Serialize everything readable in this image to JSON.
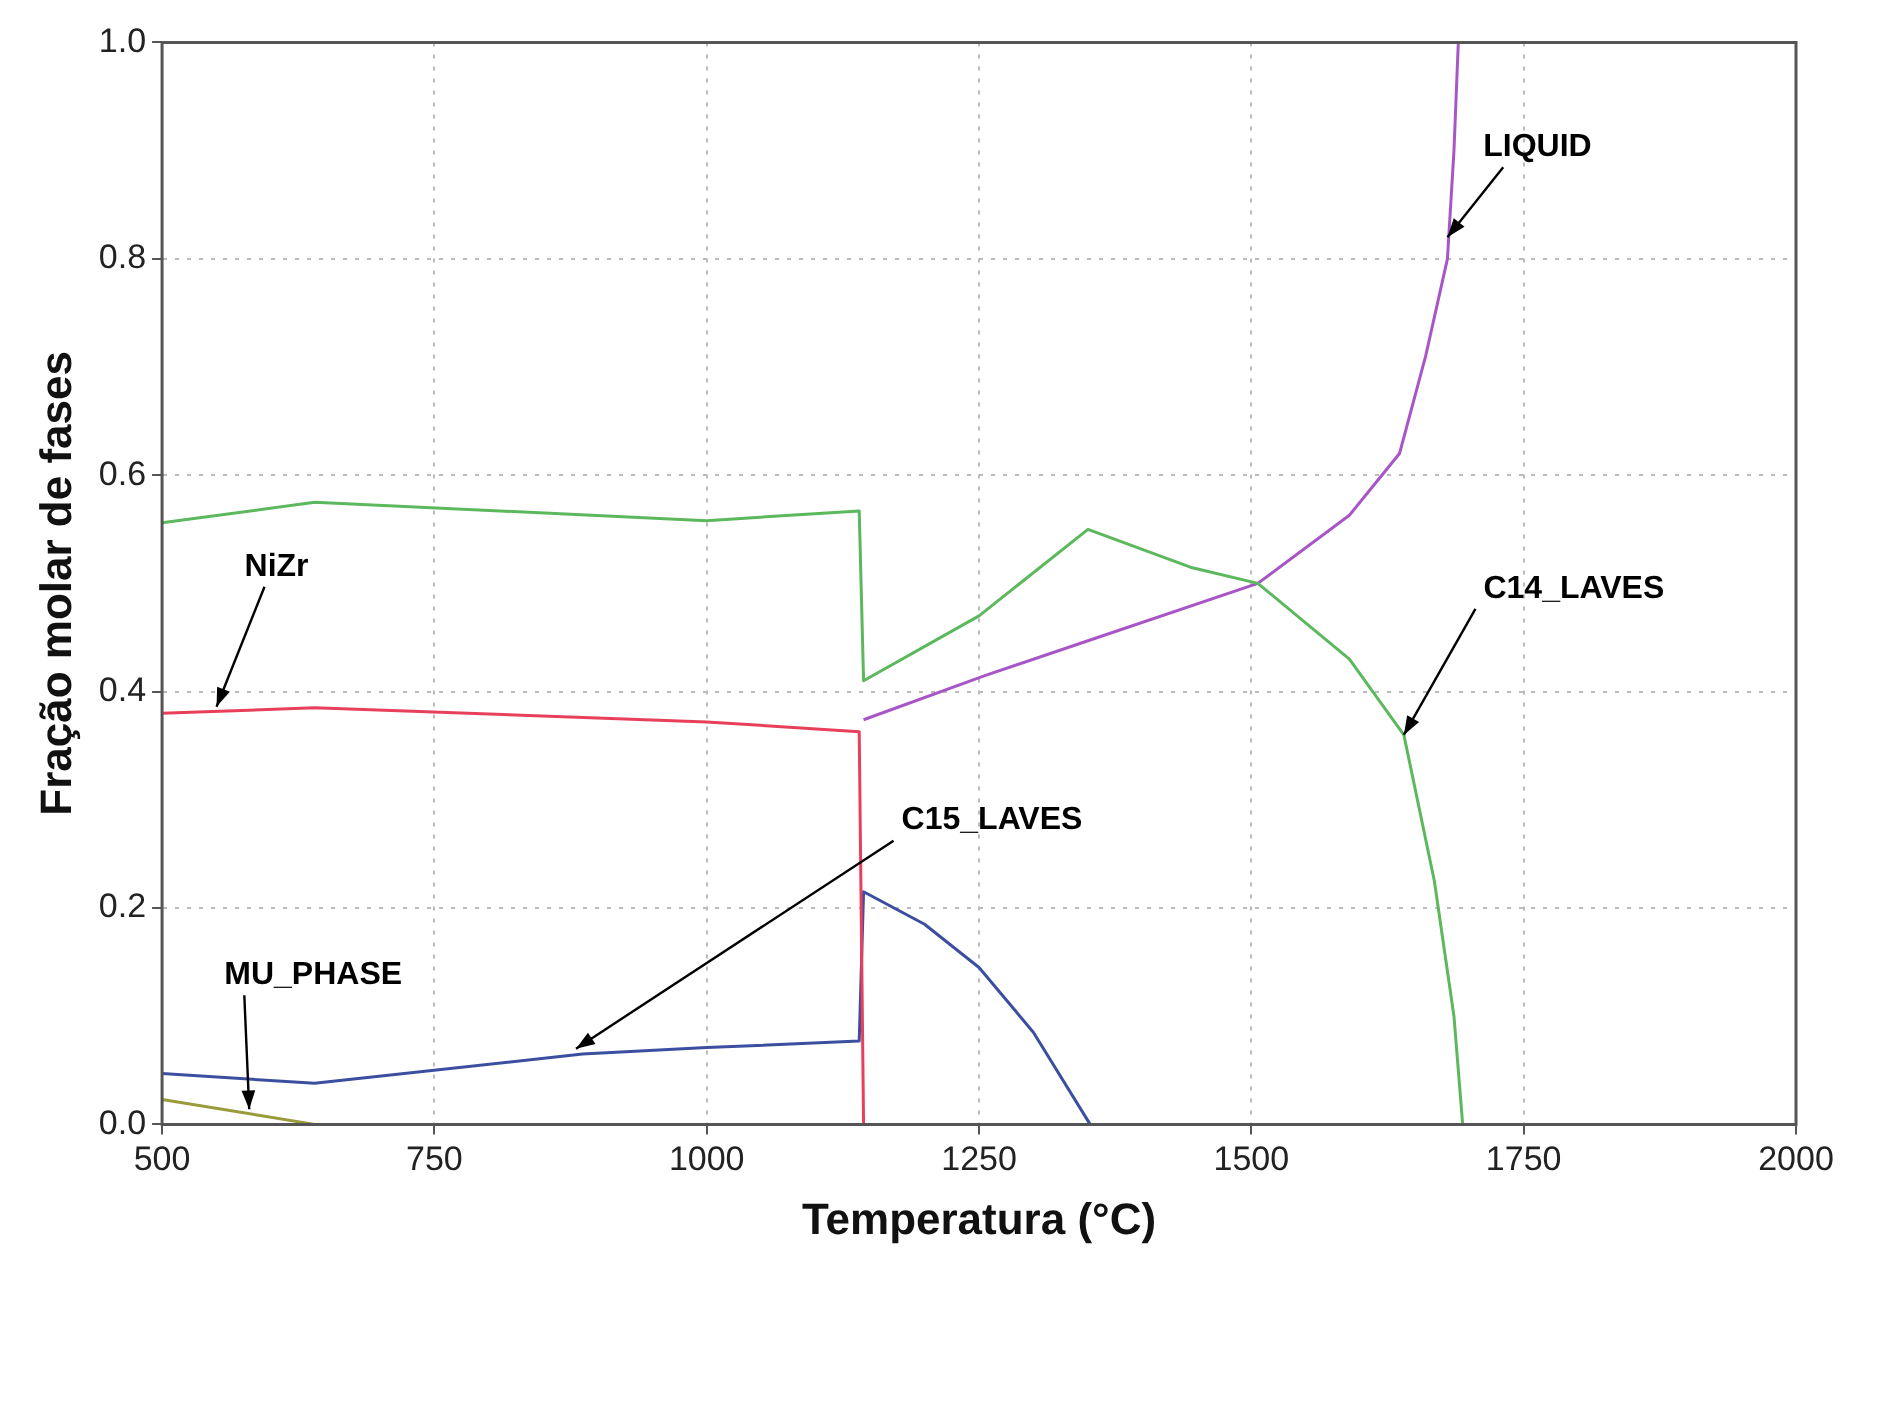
{
  "chart_data": {
    "type": "line",
    "xlabel": "Temperatura (°C)",
    "ylabel": "Fração molar de fases",
    "xlim": [
      500,
      2000
    ],
    "xticks": [
      500,
      750,
      1000,
      1250,
      1500,
      1750,
      2000
    ],
    "ylim": [
      0,
      1
    ],
    "yticks": [
      {
        "value": 0,
        "label": "0.0"
      },
      0.2,
      0.4,
      0.6,
      0.8,
      {
        "value": 1,
        "label": "1.0"
      }
    ],
    "grid": true,
    "legend": false,
    "marker": "none",
    "line_style": "solid",
    "series": [
      {
        "color": "#5cb85c",
        "x": [
          500,
          640,
          1000,
          1140,
          1144,
          1250,
          1350,
          1444,
          1506,
          1590,
          1640,
          1668,
          1686,
          1694
        ],
        "values": [
          0.556,
          0.575,
          0.558,
          0.567,
          0.41,
          0.47,
          0.55,
          0.515,
          0.5,
          0.43,
          0.36,
          0.225,
          0.1,
          0
        ]
      },
      {
        "color": "#e8405a",
        "x": [
          500,
          640,
          1000,
          1140,
          1144
        ],
        "values": [
          0.38,
          0.385,
          0.372,
          0.363,
          0
        ]
      },
      {
        "color": "#3c4ea0",
        "x": [
          500,
          640,
          886,
          1000,
          1140,
          1144,
          1200,
          1250,
          1300,
          1352
        ],
        "values": [
          0.047,
          0.038,
          0.065,
          0.071,
          0.077,
          0.215,
          0.185,
          0.145,
          0.085,
          0
        ]
      },
      {
        "color": "#a855c8",
        "x": [
          1144,
          1256,
          1350,
          1506,
          1590,
          1636,
          1660,
          1680,
          1686,
          1690
        ],
        "values": [
          0.374,
          0.415,
          0.447,
          0.5,
          0.563,
          0.62,
          0.71,
          0.8,
          0.9,
          1.0
        ]
      },
      {
        "color": "#9a9a3a",
        "x": [
          500,
          640
        ],
        "values": [
          0.023,
          0
        ]
      }
    ],
    "annotations": [
      {
        "text": "NiZr",
        "x": 550,
        "y": 0.386
      },
      {
        "text": "LIQUID",
        "x": 1680,
        "y": 0.82
      },
      {
        "text": "C14_LAVES",
        "x": 1640,
        "y": 0.36
      },
      {
        "text": "C15_LAVES",
        "x": 880,
        "y": 0.07
      },
      {
        "text": "MU_PHASE",
        "x": 580,
        "y": 0.014
      }
    ]
  }
}
